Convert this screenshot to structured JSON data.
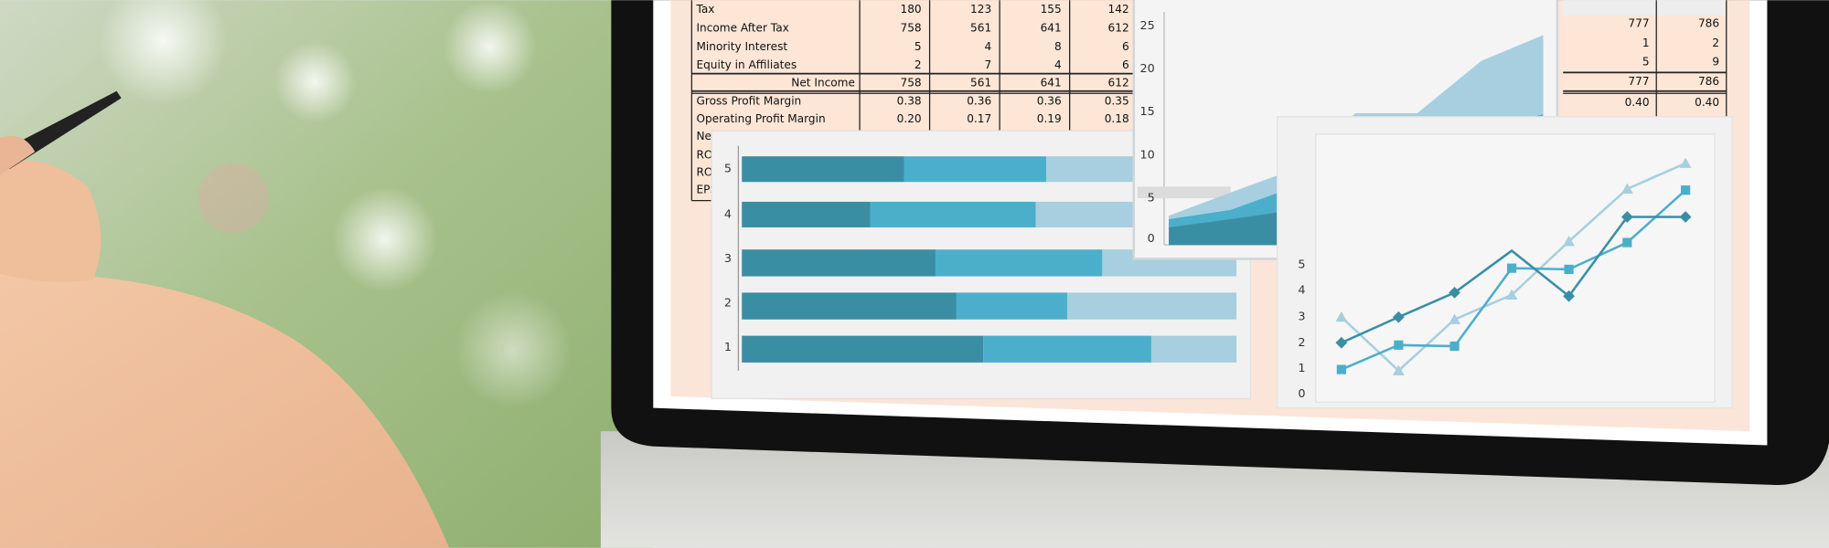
{
  "table": {
    "rows": [
      [
        "Tax",
        "180",
        "123",
        "155",
        "142"
      ],
      [
        "Income After Tax",
        "758",
        "561",
        "641",
        "612"
      ],
      [
        "Minority Interest",
        "5",
        "4",
        "8",
        "6"
      ],
      [
        "Equity in Affiliates",
        "2",
        "7",
        "4",
        "6"
      ],
      [
        "Net Income",
        "758",
        "561",
        "641",
        "612"
      ],
      [
        "Gross Profit Margin",
        "0.38",
        "0.36",
        "0.36",
        "0.35"
      ],
      [
        "Operating Profit Margin",
        "0.20",
        "0.17",
        "0.19",
        "0.18"
      ],
      [
        "Net"
      ],
      [
        "ROE"
      ],
      [
        "ROA"
      ],
      [
        "EPS"
      ]
    ]
  },
  "right_table": {
    "rows": [
      [
        "777",
        "786"
      ],
      [
        "1",
        "2"
      ],
      [
        "5",
        "9"
      ],
      [
        "777",
        "786"
      ],
      [
        "0.40",
        "0.40"
      ]
    ]
  },
  "bar_chart": {
    "categories": [
      "5",
      "4",
      "3",
      "2",
      "1"
    ]
  },
  "area_chart": {
    "yticks": [
      "0",
      "5",
      "10",
      "15",
      "20",
      "25"
    ]
  },
  "line_chart": {
    "yticks": [
      "0",
      "1",
      "2",
      "3",
      "4",
      "5"
    ]
  }
}
